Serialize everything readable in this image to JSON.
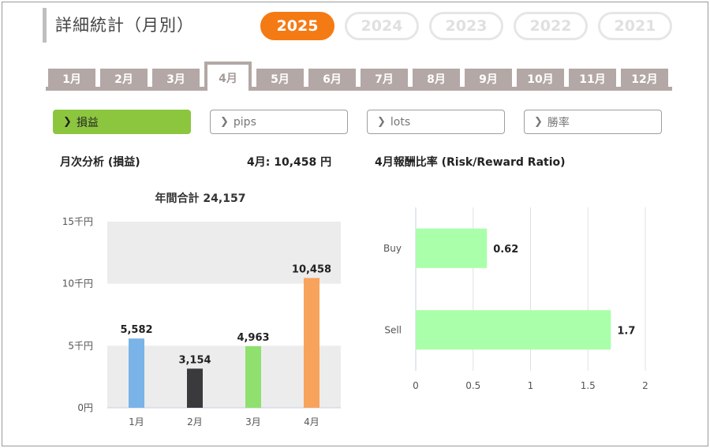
{
  "header": {
    "title": "詳細統計（月別）"
  },
  "years": [
    {
      "label": "2025",
      "active": true
    },
    {
      "label": "2024",
      "active": false
    },
    {
      "label": "2023",
      "active": false
    },
    {
      "label": "2022",
      "active": false
    },
    {
      "label": "2021",
      "active": false
    }
  ],
  "months": [
    "1月",
    "2月",
    "3月",
    "4月",
    "5月",
    "6月",
    "7月",
    "8月",
    "9月",
    "10月",
    "11月",
    "12月"
  ],
  "active_month_index": 3,
  "subtabs": [
    {
      "label": "損益",
      "active": true
    },
    {
      "label": "pips",
      "active": false
    },
    {
      "label": "lots",
      "active": false
    },
    {
      "label": "勝率",
      "active": false
    }
  ],
  "monthly": {
    "label": "月次分析 (損益)",
    "current": "4月:  10,458 円"
  },
  "rr": {
    "label": "4月報酬比率 (Risk/Reward Ratio)"
  },
  "colors": {
    "accent": "#f47a14",
    "active_tab": "#8cc63f",
    "rr_bar": "#aaffaa"
  },
  "chart_data": [
    {
      "type": "bar",
      "title": "年間合計 24,157",
      "categories": [
        "1月",
        "2月",
        "3月",
        "4月"
      ],
      "values": [
        5582,
        3154,
        4963,
        10458
      ],
      "value_labels": [
        "5,582",
        "3,154",
        "4,963",
        "10,458"
      ],
      "bar_colors": [
        "#7ab3e8",
        "#3a3a3c",
        "#90e070",
        "#f7a35c"
      ],
      "yticks": [
        "0円",
        "5千円",
        "10千円",
        "15千円"
      ],
      "ylim": [
        0,
        15000
      ],
      "grid": "alternating bands"
    },
    {
      "type": "bar",
      "orientation": "horizontal",
      "categories": [
        "Buy",
        "Sell"
      ],
      "values": [
        0.62,
        1.7
      ],
      "value_labels": [
        "0.62",
        "1.7"
      ],
      "xticks": [
        "0",
        "0.5",
        "1",
        "1.5",
        "2"
      ],
      "xlim": [
        0,
        2
      ],
      "grid": true
    }
  ]
}
